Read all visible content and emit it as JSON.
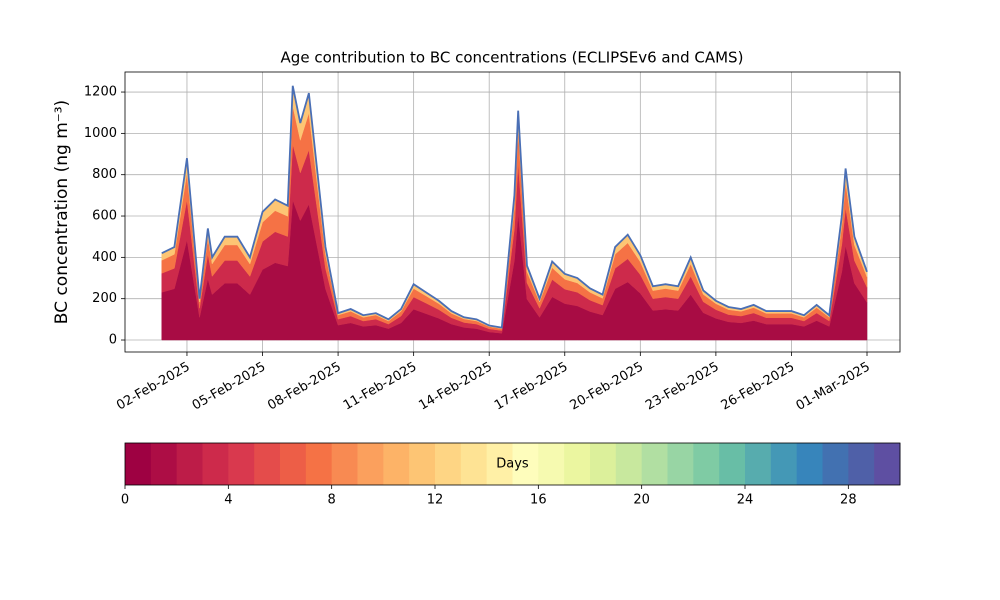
{
  "chart_data": {
    "type": "stacked_area",
    "title": "Age contribution to BC concentrations (ECLIPSEv6 and CAMS)",
    "y_label": "BC concentration (ng m⁻³)",
    "x": [
      1,
      1.5,
      2,
      2.5,
      2.83,
      3,
      3.5,
      4,
      4.5,
      5,
      5.5,
      6,
      6.2,
      6.5,
      6.84,
      7.5,
      8,
      8.5,
      9,
      9.5,
      10,
      10.5,
      11,
      11.5,
      12,
      12.5,
      13,
      13.5,
      14,
      14.5,
      15,
      15.15,
      15.5,
      16,
      16.5,
      17,
      17.5,
      18,
      18.5,
      19,
      19.5,
      20,
      20.5,
      21,
      21.5,
      22,
      22.5,
      23,
      23.5,
      24,
      24.5,
      25,
      25.5,
      26,
      26.5,
      27,
      27.5,
      28,
      28.15,
      28.5,
      29
    ],
    "series": [
      {
        "color": "#a80c44",
        "values": [
          231,
          248,
          484,
          110,
          297,
          220,
          275,
          275,
          220,
          341,
          374,
          358,
          677,
          578,
          657,
          248,
          72,
          83,
          66,
          72,
          55,
          83,
          149,
          127,
          105,
          77,
          61,
          55,
          39,
          33,
          385,
          611,
          198,
          110,
          209,
          176,
          165,
          138,
          121,
          248,
          281,
          226,
          143,
          149,
          143,
          220,
          132,
          105,
          88,
          83,
          94,
          77,
          77,
          77,
          66,
          94,
          66,
          330,
          457,
          275,
          182
        ]
      },
      {
        "color": "#cd2a4b",
        "values": [
          92,
          99,
          194,
          44,
          119,
          88,
          110,
          110,
          88,
          136,
          150,
          143,
          271,
          231,
          263,
          99,
          29,
          33,
          26,
          29,
          22,
          33,
          59,
          51,
          42,
          31,
          24,
          22,
          15,
          13,
          154,
          244,
          79,
          44,
          84,
          70,
          66,
          55,
          48,
          99,
          112,
          90,
          57,
          59,
          57,
          88,
          53,
          42,
          35,
          33,
          37,
          31,
          31,
          31,
          26,
          37,
          26,
          132,
          183,
          110,
          73
        ]
      },
      {
        "color": "#f57245",
        "values": [
          63,
          68,
          132,
          30,
          81,
          60,
          75,
          75,
          60,
          93,
          102,
          98,
          185,
          158,
          179,
          68,
          20,
          23,
          18,
          20,
          15,
          23,
          41,
          35,
          29,
          21,
          17,
          15,
          11,
          9,
          105,
          167,
          54,
          30,
          57,
          48,
          45,
          38,
          33,
          68,
          77,
          62,
          39,
          41,
          39,
          60,
          36,
          29,
          24,
          23,
          26,
          21,
          21,
          21,
          18,
          26,
          18,
          90,
          125,
          75,
          50
        ]
      },
      {
        "color": "#fdc574",
        "values": [
          34,
          35,
          70,
          16,
          43,
          32,
          40,
          40,
          32,
          50,
          54,
          51,
          97,
          83,
          96,
          35,
          9,
          11,
          10,
          9,
          8,
          11,
          21,
          17,
          14,
          11,
          8,
          8,
          5,
          5,
          56,
          88,
          29,
          16,
          30,
          26,
          24,
          19,
          18,
          35,
          40,
          32,
          21,
          21,
          21,
          32,
          19,
          14,
          13,
          11,
          13,
          11,
          11,
          11,
          10,
          13,
          10,
          48,
          65,
          40,
          25
        ]
      }
    ],
    "outline_color": "#4a6fb5",
    "xlim": [
      -0.46,
      30.31
    ],
    "xticks": [
      {
        "value": 2,
        "label": "02-Feb-2025"
      },
      {
        "value": 5,
        "label": "05-Feb-2025"
      },
      {
        "value": 8,
        "label": "08-Feb-2025"
      },
      {
        "value": 11,
        "label": "11-Feb-2025"
      },
      {
        "value": 14,
        "label": "14-Feb-2025"
      },
      {
        "value": 17,
        "label": "17-Feb-2025"
      },
      {
        "value": 20,
        "label": "20-Feb-2025"
      },
      {
        "value": 23,
        "label": "23-Feb-2025"
      },
      {
        "value": 26,
        "label": "26-Feb-2025"
      },
      {
        "value": 29,
        "label": "01-Mar-2025"
      }
    ],
    "ylim": [
      -58,
      1297
    ],
    "yticks": [
      0,
      200,
      400,
      600,
      800,
      1000,
      1200
    ],
    "grid": true,
    "colorbar": {
      "label": "Days",
      "lim": [
        0,
        30
      ],
      "ticks": [
        0,
        4,
        8,
        12,
        16,
        20,
        24,
        28
      ],
      "colors": [
        "#9e0142",
        "#ad0d45",
        "#bd1c48",
        "#cd2a4b",
        "#d9394e",
        "#e44c4b",
        "#ed5e47",
        "#f57245",
        "#f88a52",
        "#fba05d",
        "#fdb367",
        "#fdc574",
        "#fed584",
        "#fee394",
        "#fff0a6",
        "#fefdbc",
        "#f6fab0",
        "#ebf6a0",
        "#dcf09b",
        "#c8e89e",
        "#b1dfa2",
        "#98d5a4",
        "#7fcba4",
        "#68bea6",
        "#57acae",
        "#4498b6",
        "#3785bb",
        "#4271b1",
        "#4f60a8",
        "#5e4fa2"
      ]
    }
  }
}
